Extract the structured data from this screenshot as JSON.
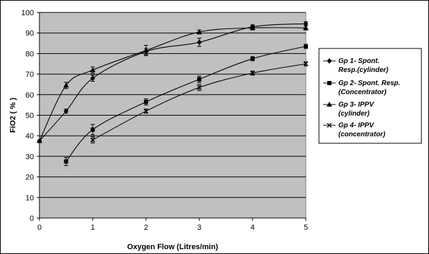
{
  "chart_data": {
    "type": "line",
    "title": "",
    "xlabel": "Oxygen Flow (Litres/min)",
    "ylabel": "FiO2 ( % )",
    "xlim": [
      0,
      5
    ],
    "ylim": [
      0,
      100
    ],
    "x_ticks": [
      "0",
      "1",
      "2",
      "3",
      "4",
      "5"
    ],
    "y_ticks": [
      "0",
      "10",
      "20",
      "30",
      "40",
      "50",
      "60",
      "70",
      "80",
      "90",
      "100"
    ],
    "grid": "horizontal",
    "plot_background": "#c0c0c0",
    "legend_position": "right",
    "series": [
      {
        "name_lines": [
          "Gp 1- Spont.",
          "Resp.(cylinder)"
        ],
        "marker": "diamond",
        "points": [
          {
            "x": 0,
            "y": 37.5,
            "err": 0
          },
          {
            "x": 0.5,
            "y": 52,
            "err": 1
          },
          {
            "x": 1,
            "y": 68,
            "err": 1.5
          },
          {
            "x": 2,
            "y": 81,
            "err": 1.5
          },
          {
            "x": 3,
            "y": 85.5,
            "err": 2
          },
          {
            "x": 4,
            "y": 93,
            "err": 1
          },
          {
            "x": 5,
            "y": 94.5,
            "err": 1
          }
        ]
      },
      {
        "name_lines": [
          "Gp 2-  Spont. Resp.",
          "(Concentrator)"
        ],
        "marker": "square",
        "points": [
          {
            "x": 0.5,
            "y": 27.5,
            "err": 2
          },
          {
            "x": 1,
            "y": 43,
            "err": 2.5
          },
          {
            "x": 2,
            "y": 56.5,
            "err": 1.5
          },
          {
            "x": 3,
            "y": 67.5,
            "err": 1.5
          },
          {
            "x": 4,
            "y": 77.5,
            "err": 1
          },
          {
            "x": 5,
            "y": 83.5,
            "err": 1
          }
        ]
      },
      {
        "name_lines": [
          "Gp 3- IPPV",
          "(cylinder)"
        ],
        "marker": "triangle",
        "points": [
          {
            "x": 0,
            "y": 37.5,
            "err": 0
          },
          {
            "x": 0.5,
            "y": 64.5,
            "err": 1.5
          },
          {
            "x": 1,
            "y": 72,
            "err": 1.5
          },
          {
            "x": 2,
            "y": 81.5,
            "err": 2.5
          },
          {
            "x": 3,
            "y": 90.5,
            "err": 1
          },
          {
            "x": 4,
            "y": 92.5,
            "err": 1
          },
          {
            "x": 5,
            "y": 92.5,
            "err": 1
          }
        ]
      },
      {
        "name_lines": [
          "Gp 4- IPPV",
          "(concentrator)"
        ],
        "marker": "x",
        "points": [
          {
            "x": 1,
            "y": 38,
            "err": 1.5
          },
          {
            "x": 2,
            "y": 52,
            "err": 1
          },
          {
            "x": 3,
            "y": 63.5,
            "err": 1.5
          },
          {
            "x": 4,
            "y": 70.5,
            "err": 1
          },
          {
            "x": 5,
            "y": 75,
            "err": 1
          }
        ]
      }
    ]
  }
}
